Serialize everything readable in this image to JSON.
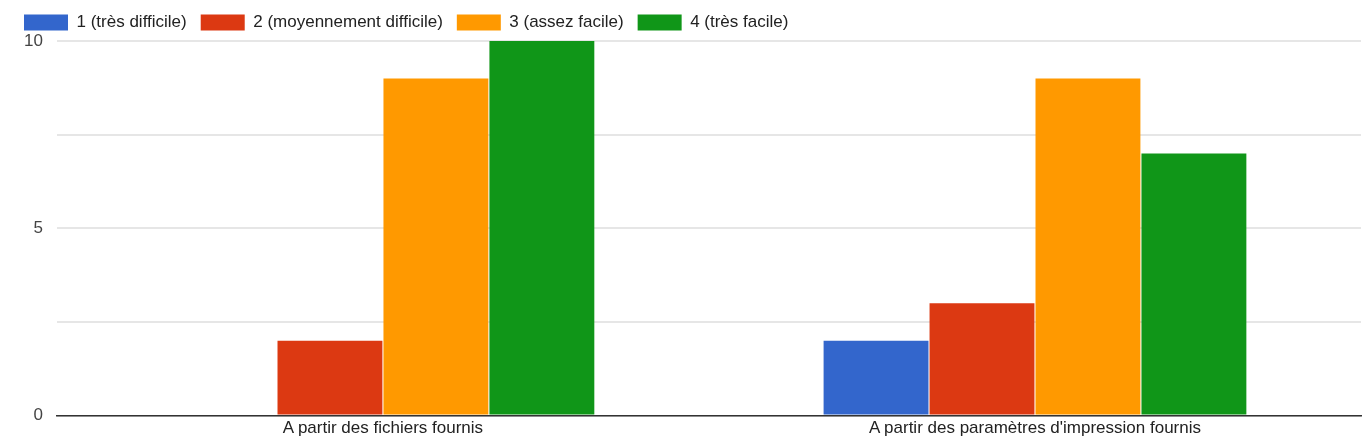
{
  "chart_data": {
    "type": "bar",
    "categories": [
      "A partir des fichiers fournis",
      "A partir des paramètres d'impression fournis"
    ],
    "series": [
      {
        "name": "1 (très difficile)",
        "color": "#3366cc",
        "values": [
          0,
          2
        ]
      },
      {
        "name": "2 (moyennement difficile)",
        "color": "#dc3912",
        "values": [
          2,
          3
        ]
      },
      {
        "name": "3 (assez facile)",
        "color": "#ff9900",
        "values": [
          9,
          9
        ]
      },
      {
        "name": "4 (très facile)",
        "color": "#109618",
        "values": [
          10,
          7
        ]
      }
    ],
    "ylim": [
      0,
      10
    ],
    "yticks": [
      0,
      {
        "value": 2.5,
        "label": null
      },
      5,
      {
        "value": 7.5,
        "label": null
      },
      10
    ],
    "grid": "y",
    "legend": "top left"
  }
}
